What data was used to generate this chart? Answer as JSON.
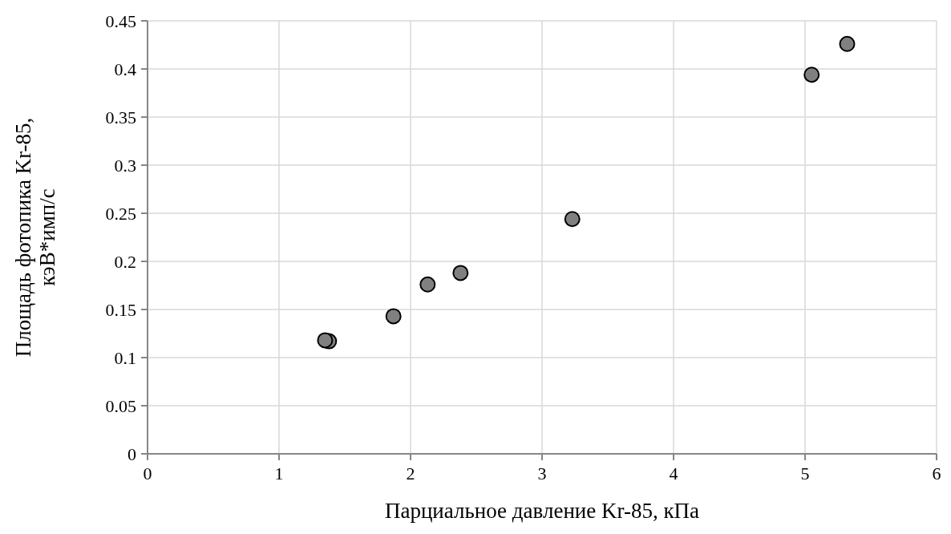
{
  "chart_data": {
    "type": "scatter",
    "xlabel": "Парциальное давление Kr-85, кПа",
    "ylabel": "Площадь фотопика Kr-85,\nкэВ*имп/с",
    "x": [
      1.35,
      1.38,
      1.87,
      2.13,
      2.38,
      3.23,
      5.05,
      5.32
    ],
    "series": [
      {
        "color": "#808080",
        "values": [
          0.118,
          0.117,
          0.143,
          0.176,
          0.188,
          0.244,
          0.394,
          0.426
        ]
      }
    ],
    "xlim": [
      0,
      6
    ],
    "xticks": [
      0,
      1,
      2,
      3,
      4,
      5,
      6
    ],
    "ylim": [
      0,
      0.45
    ],
    "yticks": [
      0,
      0.05,
      0.1,
      0.15,
      0.2,
      0.25,
      0.3,
      0.35,
      0.4,
      0.45
    ],
    "grid": true,
    "marker": "circle"
  }
}
